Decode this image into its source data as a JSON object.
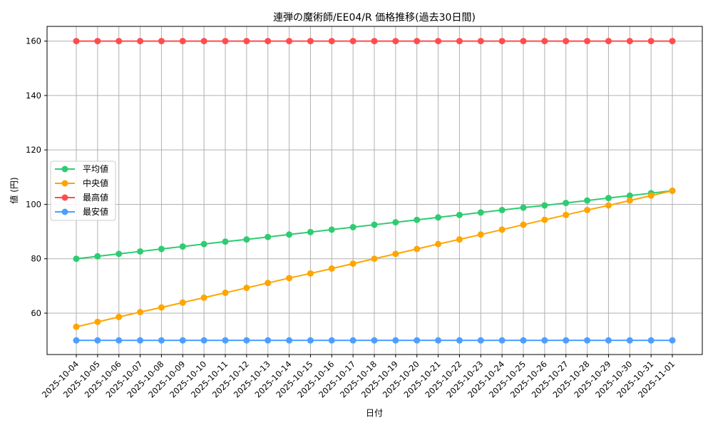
{
  "chart_data": {
    "type": "line",
    "title": "連弾の魔術師/EE04/R 価格推移(過去30日間)",
    "xlabel": "日付",
    "ylabel": "値 (円)",
    "ylim": [
      44.8,
      165.4
    ],
    "yticks": [
      60,
      80,
      100,
      120,
      140,
      160
    ],
    "grid": true,
    "legend_position": "center left",
    "x": [
      "2025-10-04",
      "2025-10-05",
      "2025-10-06",
      "2025-10-07",
      "2025-10-08",
      "2025-10-09",
      "2025-10-10",
      "2025-10-11",
      "2025-10-12",
      "2025-10-13",
      "2025-10-14",
      "2025-10-15",
      "2025-10-16",
      "2025-10-17",
      "2025-10-18",
      "2025-10-19",
      "2025-10-20",
      "2025-10-21",
      "2025-10-22",
      "2025-10-23",
      "2025-10-24",
      "2025-10-25",
      "2025-10-26",
      "2025-10-27",
      "2025-10-28",
      "2025-10-29",
      "2025-10-30",
      "2025-10-31",
      "2025-11-01"
    ],
    "series": [
      {
        "name": "平均値",
        "color": "#2ecc71",
        "values": [
          80.0,
          80.9,
          81.8,
          82.7,
          83.6,
          84.5,
          85.4,
          86.3,
          87.1,
          88.0,
          88.9,
          89.8,
          90.7,
          91.6,
          92.5,
          93.4,
          94.3,
          95.2,
          96.1,
          97.0,
          97.9,
          98.8,
          99.6,
          100.5,
          101.4,
          102.3,
          103.2,
          104.1,
          105.0
        ]
      },
      {
        "name": "中央値",
        "color": "#ffa500",
        "values": [
          55.0,
          56.8,
          58.6,
          60.4,
          62.1,
          63.9,
          65.7,
          67.5,
          69.3,
          71.1,
          72.9,
          74.6,
          76.4,
          78.2,
          80.0,
          81.8,
          83.6,
          85.4,
          87.1,
          88.9,
          90.7,
          92.5,
          94.3,
          96.1,
          97.9,
          99.6,
          101.4,
          103.2,
          105.0
        ]
      },
      {
        "name": "最高値",
        "color": "#ff4d4d",
        "values": [
          160,
          160,
          160,
          160,
          160,
          160,
          160,
          160,
          160,
          160,
          160,
          160,
          160,
          160,
          160,
          160,
          160,
          160,
          160,
          160,
          160,
          160,
          160,
          160,
          160,
          160,
          160,
          160,
          160
        ]
      },
      {
        "name": "最安値",
        "color": "#4d9fff",
        "values": [
          50,
          50,
          50,
          50,
          50,
          50,
          50,
          50,
          50,
          50,
          50,
          50,
          50,
          50,
          50,
          50,
          50,
          50,
          50,
          50,
          50,
          50,
          50,
          50,
          50,
          50,
          50,
          50,
          50
        ]
      }
    ]
  }
}
